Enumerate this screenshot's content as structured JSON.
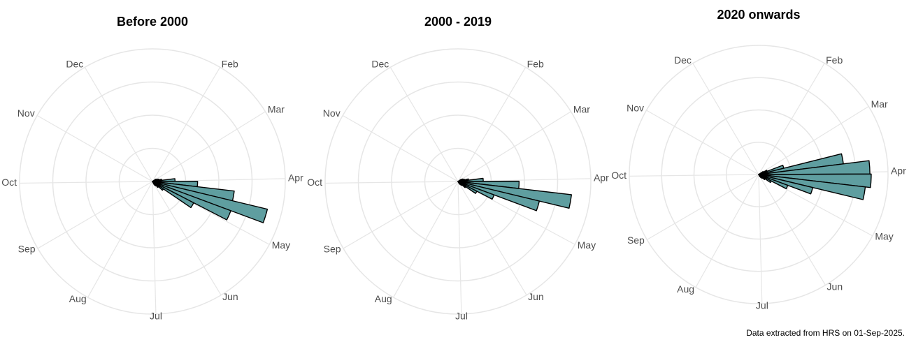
{
  "footnote": "Data extracted from HRS on 01-Sep-2025.",
  "chart_data": [
    {
      "type": "polar-histogram",
      "title": "Before 2000",
      "color": "#5f9ea0",
      "bins": [
        57,
        64,
        71,
        78,
        85,
        92,
        99,
        106,
        113,
        120,
        127,
        134,
        141,
        148,
        155
      ],
      "values": [
        6,
        8,
        10,
        14,
        34,
        68,
        124,
        178,
        126,
        70,
        20,
        12,
        8,
        6
      ],
      "xlim": [
        1,
        366
      ],
      "xticks": [
        {
          "value": 32,
          "label": "Feb"
        },
        {
          "value": 60,
          "label": "Mar"
        },
        {
          "value": 91,
          "label": "Apr"
        },
        {
          "value": 121,
          "label": "May"
        },
        {
          "value": 152,
          "label": "Jun"
        },
        {
          "value": 182,
          "label": "Jul"
        },
        {
          "value": 213,
          "label": "Aug"
        },
        {
          "value": 244,
          "label": "Sep"
        },
        {
          "value": 274,
          "label": "Oct"
        },
        {
          "value": 305,
          "label": "Nov"
        },
        {
          "value": 335,
          "label": "Dec"
        }
      ],
      "ylim": [
        0,
        200
      ],
      "yticks": [
        50,
        100,
        150,
        200
      ],
      "grid": true
    },
    {
      "type": "polar-histogram",
      "title": "2000 - 2019",
      "color": "#5f9ea0",
      "bins": [
        57,
        64,
        71,
        78,
        85,
        92,
        99,
        106,
        113,
        120,
        127,
        134,
        141,
        148,
        155
      ],
      "values": [
        6,
        8,
        10,
        16,
        38,
        92,
        172,
        126,
        58,
        32,
        14,
        8,
        6,
        4
      ],
      "xlim": [
        1,
        366
      ],
      "xticks": [
        {
          "value": 32,
          "label": "Feb"
        },
        {
          "value": 60,
          "label": "Mar"
        },
        {
          "value": 91,
          "label": "Apr"
        },
        {
          "value": 121,
          "label": "May"
        },
        {
          "value": 152,
          "label": "Jun"
        },
        {
          "value": 182,
          "label": "Jul"
        },
        {
          "value": 213,
          "label": "Aug"
        },
        {
          "value": 244,
          "label": "Sep"
        },
        {
          "value": 274,
          "label": "Oct"
        },
        {
          "value": 305,
          "label": "Nov"
        },
        {
          "value": 335,
          "label": "Dec"
        }
      ],
      "ylim": [
        0,
        200
      ],
      "yticks": [
        50,
        100,
        150,
        200
      ],
      "grid": true
    },
    {
      "type": "polar-histogram",
      "title": "2020 onwards",
      "color": "#5f9ea0",
      "bins": [
        57,
        64,
        71,
        78,
        85,
        92,
        99,
        106,
        113,
        120,
        127,
        134,
        141,
        148,
        155
      ],
      "values": [
        8,
        14,
        40,
        132,
        172,
        174,
        166,
        86,
        48,
        22,
        12,
        8,
        6,
        4
      ],
      "xlim": [
        1,
        366
      ],
      "xticks": [
        {
          "value": 32,
          "label": "Feb"
        },
        {
          "value": 60,
          "label": "Mar"
        },
        {
          "value": 91,
          "label": "Apr"
        },
        {
          "value": 121,
          "label": "May"
        },
        {
          "value": 152,
          "label": "Jun"
        },
        {
          "value": 182,
          "label": "Jul"
        },
        {
          "value": 213,
          "label": "Aug"
        },
        {
          "value": 244,
          "label": "Sep"
        },
        {
          "value": 274,
          "label": "Oct"
        },
        {
          "value": 305,
          "label": "Nov"
        },
        {
          "value": 335,
          "label": "Dec"
        }
      ],
      "ylim": [
        0,
        200
      ],
      "yticks": [
        50,
        100,
        150,
        200
      ],
      "grid": true
    }
  ]
}
